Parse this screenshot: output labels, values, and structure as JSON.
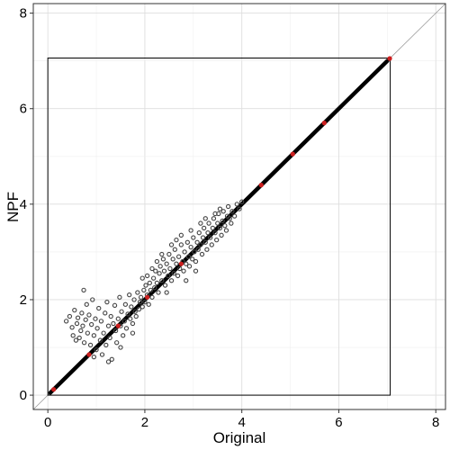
{
  "chart_data": {
    "type": "scatter",
    "xlabel": "Original",
    "ylabel": "NPF",
    "xlim": [
      -0.3,
      8.2
    ],
    "ylim": [
      -0.3,
      8.2
    ],
    "x_ticks": [
      0,
      2,
      4,
      6,
      8
    ],
    "y_ticks": [
      0,
      2,
      4,
      6,
      8
    ],
    "x_tick_labels": [
      "0",
      "2",
      "4",
      "6",
      "8"
    ],
    "y_tick_labels": [
      "0",
      "2",
      "4",
      "6",
      "8"
    ],
    "grid": true,
    "identity_line": {
      "from": [
        -0.3,
        -0.3
      ],
      "to": [
        8.2,
        8.2
      ],
      "color": "#9a9a9a"
    },
    "range_box": {
      "x": [
        0,
        7.06
      ],
      "y": [
        0,
        7.06
      ],
      "color": "#000000"
    },
    "diagonal_band": {
      "from": 0.05,
      "to": 7.0,
      "color": "#000000"
    },
    "series": [
      {
        "color": "#444444",
        "points": [
          [
            0.38,
            1.55
          ],
          [
            0.45,
            1.65
          ],
          [
            0.5,
            1.42
          ],
          [
            0.52,
            1.25
          ],
          [
            0.55,
            1.78
          ],
          [
            0.58,
            1.15
          ],
          [
            0.6,
            1.5
          ],
          [
            0.62,
            1.62
          ],
          [
            0.65,
            1.2
          ],
          [
            0.68,
            1.35
          ],
          [
            0.7,
            1.72
          ],
          [
            0.72,
            1.45
          ],
          [
            0.74,
            2.2
          ],
          [
            0.75,
            1.1
          ],
          [
            0.78,
            1.58
          ],
          [
            0.8,
            1.9
          ],
          [
            0.82,
            1.3
          ],
          [
            0.85,
            1.68
          ],
          [
            0.88,
            1.05
          ],
          [
            0.9,
            1.48
          ],
          [
            0.92,
            2.0
          ],
          [
            0.95,
            1.25
          ],
          [
            0.98,
            1.6
          ],
          [
            1.0,
            0.95
          ],
          [
            1.02,
            1.4
          ],
          [
            1.05,
            1.82
          ],
          [
            1.08,
            1.15
          ],
          [
            1.1,
            1.55
          ],
          [
            1.12,
            0.85
          ],
          [
            1.15,
            1.3
          ],
          [
            1.18,
            1.72
          ],
          [
            1.2,
            1.05
          ],
          [
            1.22,
            1.95
          ],
          [
            1.25,
            1.45
          ],
          [
            1.28,
            1.2
          ],
          [
            1.3,
            1.65
          ],
          [
            1.32,
            0.75
          ],
          [
            1.35,
            1.5
          ],
          [
            1.38,
            1.88
          ],
          [
            1.4,
            1.35
          ],
          [
            1.42,
            1.1
          ],
          [
            1.45,
            1.6
          ],
          [
            1.48,
            2.05
          ],
          [
            1.5,
            1.45
          ],
          [
            1.52,
            1.75
          ],
          [
            1.55,
            1.25
          ],
          [
            1.58,
            1.55
          ],
          [
            1.6,
            1.9
          ],
          [
            1.62,
            1.4
          ],
          [
            1.65,
            1.7
          ],
          [
            1.68,
            2.1
          ],
          [
            1.7,
            1.6
          ],
          [
            1.72,
            1.85
          ],
          [
            1.75,
            1.5
          ],
          [
            1.78,
            2.0
          ],
          [
            1.8,
            1.75
          ],
          [
            1.82,
            1.65
          ],
          [
            1.85,
            2.15
          ],
          [
            1.88,
            1.8
          ],
          [
            1.9,
            1.95
          ],
          [
            1.92,
            2.05
          ],
          [
            1.95,
            1.85
          ],
          [
            1.98,
            2.2
          ],
          [
            2.0,
            1.95
          ],
          [
            2.02,
            2.3
          ],
          [
            2.05,
            2.1
          ],
          [
            2.08,
            1.9
          ],
          [
            2.1,
            2.35
          ],
          [
            2.12,
            2.2
          ],
          [
            2.15,
            2.05
          ],
          [
            2.18,
            2.45
          ],
          [
            2.2,
            2.25
          ],
          [
            2.22,
            2.6
          ],
          [
            2.25,
            2.35
          ],
          [
            2.28,
            2.15
          ],
          [
            2.3,
            2.55
          ],
          [
            2.32,
            2.7
          ],
          [
            2.35,
            2.4
          ],
          [
            2.38,
            2.85
          ],
          [
            2.4,
            2.6
          ],
          [
            2.42,
            2.3
          ],
          [
            2.45,
            2.75
          ],
          [
            2.48,
            2.5
          ],
          [
            2.5,
            2.95
          ],
          [
            2.52,
            2.65
          ],
          [
            2.55,
            2.4
          ],
          [
            2.58,
            2.85
          ],
          [
            2.6,
            2.55
          ],
          [
            2.62,
            3.05
          ],
          [
            2.65,
            2.75
          ],
          [
            2.68,
            2.5
          ],
          [
            2.7,
            2.9
          ],
          [
            2.72,
            2.65
          ],
          [
            2.75,
            3.15
          ],
          [
            2.78,
            2.8
          ],
          [
            2.8,
            2.6
          ],
          [
            2.82,
            3.0
          ],
          [
            2.85,
            2.75
          ],
          [
            2.88,
            3.2
          ],
          [
            2.9,
            2.9
          ],
          [
            2.92,
            2.7
          ],
          [
            2.95,
            3.1
          ],
          [
            2.98,
            2.85
          ],
          [
            3.0,
            3.3
          ],
          [
            3.02,
            3.0
          ],
          [
            3.05,
            2.8
          ],
          [
            3.08,
            3.2
          ],
          [
            3.1,
            3.05
          ],
          [
            3.12,
            3.4
          ],
          [
            3.15,
            3.15
          ],
          [
            3.18,
            2.95
          ],
          [
            3.2,
            3.3
          ],
          [
            3.22,
            3.5
          ],
          [
            3.25,
            3.2
          ],
          [
            3.28,
            3.05
          ],
          [
            3.3,
            3.4
          ],
          [
            3.32,
            3.6
          ],
          [
            3.35,
            3.3
          ],
          [
            3.38,
            3.15
          ],
          [
            3.4,
            3.5
          ],
          [
            3.42,
            3.7
          ],
          [
            3.45,
            3.4
          ],
          [
            3.48,
            3.25
          ],
          [
            3.5,
            3.6
          ],
          [
            3.52,
            3.8
          ],
          [
            3.55,
            3.5
          ],
          [
            3.58,
            3.35
          ],
          [
            3.6,
            3.65
          ],
          [
            3.62,
            3.85
          ],
          [
            3.65,
            3.55
          ],
          [
            3.68,
            3.45
          ],
          [
            3.7,
            3.75
          ],
          [
            3.72,
            3.95
          ],
          [
            3.75,
            3.7
          ],
          [
            3.78,
            3.6
          ],
          [
            3.8,
            3.85
          ],
          [
            3.85,
            3.75
          ],
          [
            3.9,
            4.0
          ],
          [
            3.95,
            3.9
          ],
          [
            4.0,
            4.05
          ],
          [
            2.25,
            2.8
          ],
          [
            2.35,
            2.95
          ],
          [
            2.55,
            3.15
          ],
          [
            2.65,
            3.25
          ],
          [
            2.75,
            3.35
          ],
          [
            2.95,
            3.45
          ],
          [
            3.15,
            3.6
          ],
          [
            3.25,
            3.7
          ],
          [
            3.45,
            3.8
          ],
          [
            3.55,
            3.9
          ],
          [
            2.05,
            2.5
          ],
          [
            2.15,
            2.65
          ],
          [
            1.95,
            2.45
          ],
          [
            2.45,
            2.15
          ],
          [
            2.85,
            2.4
          ],
          [
            3.05,
            2.6
          ],
          [
            1.75,
            1.3
          ],
          [
            1.5,
            1.0
          ],
          [
            1.25,
            0.7
          ],
          [
            0.95,
            0.8
          ]
        ]
      },
      {
        "color": "#cc1f1f",
        "points": [
          [
            0.12,
            0.12
          ],
          [
            0.85,
            0.85
          ],
          [
            1.45,
            1.45
          ],
          [
            2.05,
            2.05
          ],
          [
            2.75,
            2.75
          ],
          [
            4.4,
            4.4
          ],
          [
            5.05,
            5.05
          ],
          [
            5.7,
            5.7
          ],
          [
            7.05,
            7.05
          ]
        ]
      }
    ]
  }
}
